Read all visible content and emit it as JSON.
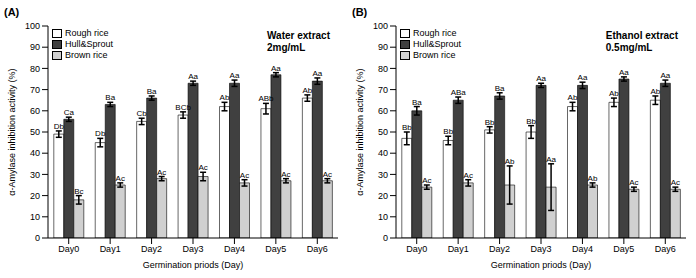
{
  "chart_data": [
    {
      "type": "bar",
      "title": "(A)",
      "annotations": [
        "Water extract",
        "2mg/mL"
      ],
      "x_label": "Germination priods (Day)",
      "y_label": "α-Amylase inhibition activity (%)",
      "categories": [
        "Day0",
        "Day1",
        "Day2",
        "Day3",
        "Day4",
        "Day5",
        "Day6"
      ],
      "series": [
        {
          "name": "Rough rice",
          "color": "#ffffff",
          "values": [
            49,
            45,
            55,
            58,
            62,
            61,
            66
          ],
          "errors": [
            1.5,
            2,
            1.5,
            1.5,
            2,
            2.5,
            1.5
          ],
          "labels": [
            "Db",
            "Db",
            "Cb",
            "BCb",
            "Ab",
            "ABb",
            "Ab"
          ]
        },
        {
          "name": "Hull&Sprout",
          "color": "#404040",
          "values": [
            56,
            63,
            66,
            73,
            73,
            77,
            74
          ],
          "errors": [
            1,
            1,
            1,
            1,
            1.5,
            1,
            1.5
          ],
          "labels": [
            "Ca",
            "Ba",
            "Ba",
            "Aa",
            "Aa",
            "Aa",
            "Aa"
          ]
        },
        {
          "name": "Brown rice",
          "color": "#d0d0d0",
          "values": [
            18,
            25,
            28,
            29,
            26,
            27,
            27
          ],
          "errors": [
            2,
            1,
            1,
            2,
            1.5,
            1,
            1
          ],
          "labels": [
            "Bc",
            "Ac",
            "Ac",
            "Ac",
            "Ac",
            "Ac",
            "Ac"
          ]
        }
      ],
      "ylim": [
        0,
        100
      ],
      "yticks": [
        0,
        10,
        20,
        30,
        40,
        50,
        60,
        70,
        80,
        90,
        100
      ],
      "grid": false,
      "legend": "upper left"
    },
    {
      "type": "bar",
      "title": "(B)",
      "annotations": [
        "Ethanol extract",
        "0.5mg/mL"
      ],
      "x_label": "Germination priods (Day)",
      "y_label": "α-Amylase inhibition activity (%)",
      "categories": [
        "Day0",
        "Day1",
        "Day2",
        "Day3",
        "Day4",
        "Day5",
        "Day6"
      ],
      "series": [
        {
          "name": "Rough rice",
          "color": "#ffffff",
          "values": [
            47,
            46,
            51,
            50,
            62,
            64,
            65
          ],
          "errors": [
            3,
            2,
            1.5,
            3,
            2,
            2,
            2
          ],
          "labels": [
            "Bb",
            "Bb",
            "Bb",
            "Bb",
            "Ab",
            "Ab",
            "Ab"
          ]
        },
        {
          "name": "Hull&Sprout",
          "color": "#404040",
          "values": [
            60,
            65,
            67,
            72,
            72,
            75,
            73
          ],
          "errors": [
            2,
            1.5,
            1.5,
            1,
            1.5,
            1,
            1.5
          ],
          "labels": [
            "Ba",
            "ABa",
            "Ba",
            "Aa",
            "Aa",
            "Aa",
            "Aa"
          ]
        },
        {
          "name": "Brown rice",
          "color": "#d0d0d0",
          "values": [
            24,
            26,
            25,
            24,
            25,
            23,
            23
          ],
          "errors": [
            1,
            1.5,
            9,
            11,
            1,
            1,
            1
          ],
          "labels": [
            "Ac",
            "Ac",
            "Ab",
            "Aa",
            "Ab",
            "Ac",
            "Ac"
          ]
        }
      ],
      "ylim": [
        0,
        100
      ],
      "yticks": [
        0,
        10,
        20,
        30,
        40,
        50,
        60,
        70,
        80,
        90,
        100
      ],
      "grid": false,
      "legend": "upper left"
    }
  ]
}
